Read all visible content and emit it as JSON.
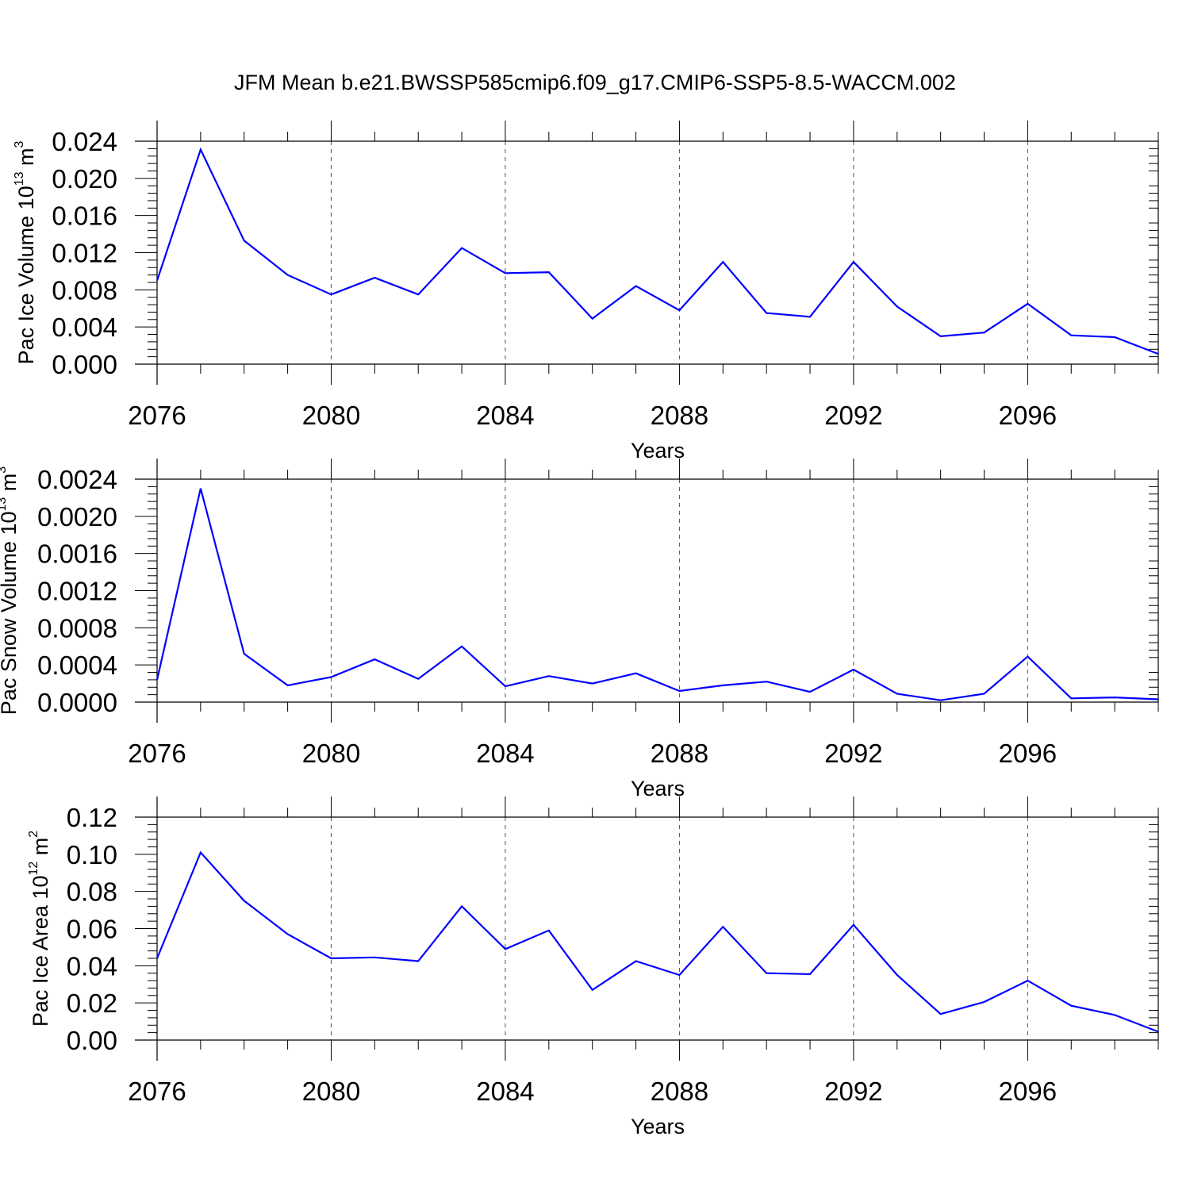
{
  "title": "JFM Mean b.e21.BWSSP585cmip6.f09_g17.CMIP6-SSP5-8.5-WACCM.002",
  "colors": {
    "series": "#0000ff",
    "axis": "#000000",
    "grid": "#555555"
  },
  "chart_data": [
    {
      "type": "line",
      "ylabel": {
        "text": "Pac Ice Volume 10",
        "exponent": "13",
        "unit": " m",
        "unit_exponent": "3"
      },
      "xlabel": "Years",
      "xlim": [
        2076,
        2099
      ],
      "ylim": [
        0,
        0.024
      ],
      "xticks": [
        "2076",
        "2080",
        "2084",
        "2088",
        "2092",
        "2096"
      ],
      "yticks": [
        "0.000",
        "0.004",
        "0.008",
        "0.012",
        "0.016",
        "0.020",
        "0.024"
      ],
      "grid": "vertical dashed at major x ticks",
      "series": [
        {
          "x": [
            2076,
            2077,
            2078,
            2079,
            2080,
            2081,
            2082,
            2083,
            2084,
            2085,
            2086,
            2087,
            2088,
            2089,
            2090,
            2091,
            2092,
            2093,
            2094,
            2095,
            2096,
            2097,
            2098,
            2099
          ],
          "values": [
            0.009,
            0.0231,
            0.0133,
            0.0096,
            0.0075,
            0.0093,
            0.0075,
            0.0125,
            0.0098,
            0.0099,
            0.0049,
            0.0084,
            0.0058,
            0.011,
            0.0055,
            0.0051,
            0.011,
            0.0062,
            0.003,
            0.0034,
            0.0065,
            0.0031,
            0.0029,
            0.0011
          ]
        }
      ]
    },
    {
      "type": "line",
      "ylabel": {
        "text": "Pac Snow Volume 10",
        "exponent": "13",
        "unit": " m",
        "unit_exponent": "3"
      },
      "xlabel": "Years",
      "xlim": [
        2076,
        2099
      ],
      "ylim": [
        0,
        0.0024
      ],
      "xticks": [
        "2076",
        "2080",
        "2084",
        "2088",
        "2092",
        "2096"
      ],
      "yticks": [
        "0.0000",
        "0.0004",
        "0.0008",
        "0.0012",
        "0.0016",
        "0.0020",
        "0.0024"
      ],
      "grid": "vertical dashed at major x ticks",
      "series": [
        {
          "x": [
            2076,
            2077,
            2078,
            2079,
            2080,
            2081,
            2082,
            2083,
            2084,
            2085,
            2086,
            2087,
            2088,
            2089,
            2090,
            2091,
            2092,
            2093,
            2094,
            2095,
            2096,
            2097,
            2098,
            2099
          ],
          "values": [
            0.00024,
            0.0023,
            0.00052,
            0.00018,
            0.00027,
            0.00046,
            0.00025,
            0.0006,
            0.00017,
            0.00028,
            0.0002,
            0.00031,
            0.00012,
            0.00018,
            0.00022,
            0.00011,
            0.00035,
            9e-05,
            2e-05,
            9e-05,
            0.00049,
            4e-05,
            5e-05,
            3e-05
          ]
        }
      ]
    },
    {
      "type": "line",
      "ylabel": {
        "text": "Pac Ice Area 10",
        "exponent": "12",
        "unit": " m",
        "unit_exponent": "2"
      },
      "xlabel": "Years",
      "xlim": [
        2076,
        2099
      ],
      "ylim": [
        0,
        0.12
      ],
      "xticks": [
        "2076",
        "2080",
        "2084",
        "2088",
        "2092",
        "2096"
      ],
      "yticks": [
        "0.00",
        "0.02",
        "0.04",
        "0.06",
        "0.08",
        "0.10",
        "0.12"
      ],
      "grid": "vertical dashed at major x ticks",
      "series": [
        {
          "x": [
            2076,
            2077,
            2078,
            2079,
            2080,
            2081,
            2082,
            2083,
            2084,
            2085,
            2086,
            2087,
            2088,
            2089,
            2090,
            2091,
            2092,
            2093,
            2094,
            2095,
            2096,
            2097,
            2098,
            2099
          ],
          "values": [
            0.044,
            0.101,
            0.075,
            0.057,
            0.044,
            0.0445,
            0.0425,
            0.072,
            0.049,
            0.059,
            0.027,
            0.0425,
            0.035,
            0.061,
            0.036,
            0.0355,
            0.062,
            0.035,
            0.014,
            0.0205,
            0.032,
            0.0185,
            0.0135,
            0.0045
          ]
        }
      ]
    }
  ]
}
